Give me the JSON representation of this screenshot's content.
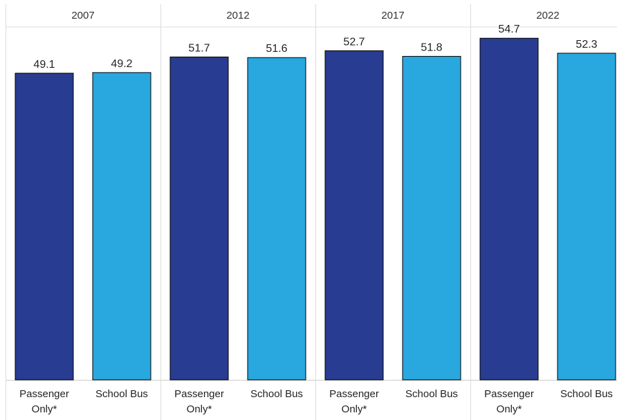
{
  "chart_data": {
    "type": "bar",
    "title": "",
    "xlabel": "",
    "ylabel": "",
    "ylim": [
      0,
      56.5
    ],
    "grid": false,
    "legend": "none",
    "panels": [
      {
        "label": "2007",
        "bars": [
          {
            "category": "Passenger Only*",
            "category_lines": [
              "Passenger",
              "Only*"
            ],
            "value": 49.1,
            "value_label": "49.1",
            "color": "#283c91"
          },
          {
            "category": "School Bus",
            "category_lines": [
              "School Bus"
            ],
            "value": 49.2,
            "value_label": "49.2",
            "color": "#29a7df"
          }
        ]
      },
      {
        "label": "2012",
        "bars": [
          {
            "category": "Passenger Only*",
            "category_lines": [
              "Passenger",
              "Only*"
            ],
            "value": 51.7,
            "value_label": "51.7",
            "color": "#283c91"
          },
          {
            "category": "School Bus",
            "category_lines": [
              "School Bus"
            ],
            "value": 51.6,
            "value_label": "51.6",
            "color": "#29a7df"
          }
        ]
      },
      {
        "label": "2017",
        "bars": [
          {
            "category": "Passenger Only*",
            "category_lines": [
              "Passenger",
              "Only*"
            ],
            "value": 52.7,
            "value_label": "52.7",
            "color": "#283c91"
          },
          {
            "category": "School Bus",
            "category_lines": [
              "School Bus"
            ],
            "value": 51.8,
            "value_label": "51.8",
            "color": "#29a7df"
          }
        ]
      },
      {
        "label": "2022",
        "bars": [
          {
            "category": "Passenger Only*",
            "category_lines": [
              "Passenger",
              "Only*"
            ],
            "value": 54.7,
            "value_label": "54.7",
            "color": "#283c91"
          },
          {
            "category": "School Bus",
            "category_lines": [
              "School Bus"
            ],
            "value": 52.3,
            "value_label": "52.3",
            "color": "#29a7df"
          }
        ]
      }
    ]
  }
}
